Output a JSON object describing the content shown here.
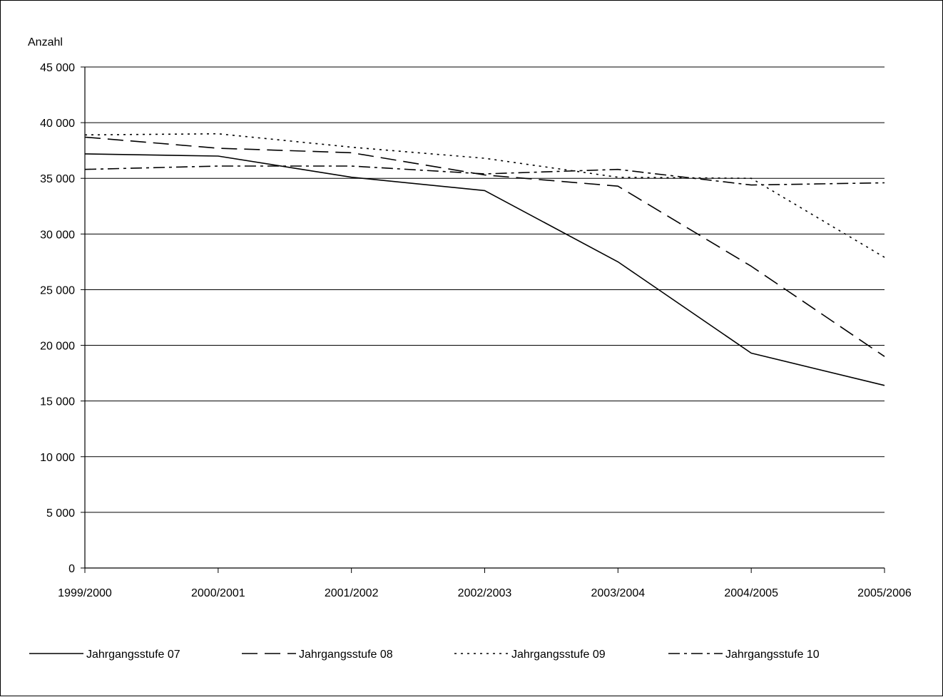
{
  "chart_data": {
    "type": "line",
    "title": "",
    "xlabel": "",
    "ylabel": "Anzahl",
    "categories": [
      "1999/2000",
      "2000/2001",
      "2001/2002",
      "2002/2003",
      "2003/2004",
      "2004/2005",
      "2005/2006"
    ],
    "ylim": [
      0,
      45000
    ],
    "yticks": [
      0,
      5000,
      10000,
      15000,
      20000,
      25000,
      30000,
      35000,
      40000,
      45000
    ],
    "ytick_labels": [
      "0",
      "5 000",
      "10 000",
      "15 000",
      "20 000",
      "25 000",
      "30 000",
      "35 000",
      "40 000",
      "45 000"
    ],
    "grid": "horizontal",
    "legend_position": "bottom",
    "series": [
      {
        "name": "Jahrgangsstufe 07",
        "style": "solid",
        "values": [
          37200,
          37000,
          35100,
          33900,
          27500,
          19300,
          16400
        ]
      },
      {
        "name": "Jahrgangsstufe 08",
        "style": "dashed",
        "values": [
          38700,
          37700,
          37300,
          35300,
          34300,
          27100,
          19000
        ]
      },
      {
        "name": "Jahrgangsstufe 09",
        "style": "dotted",
        "values": [
          38900,
          39000,
          37800,
          36800,
          35100,
          35000,
          27900
        ]
      },
      {
        "name": "Jahrgangsstufe 10",
        "style": "dashdot",
        "values": [
          35800,
          36100,
          36100,
          35400,
          35800,
          34400,
          34600
        ]
      }
    ],
    "line_color": "#000000"
  }
}
